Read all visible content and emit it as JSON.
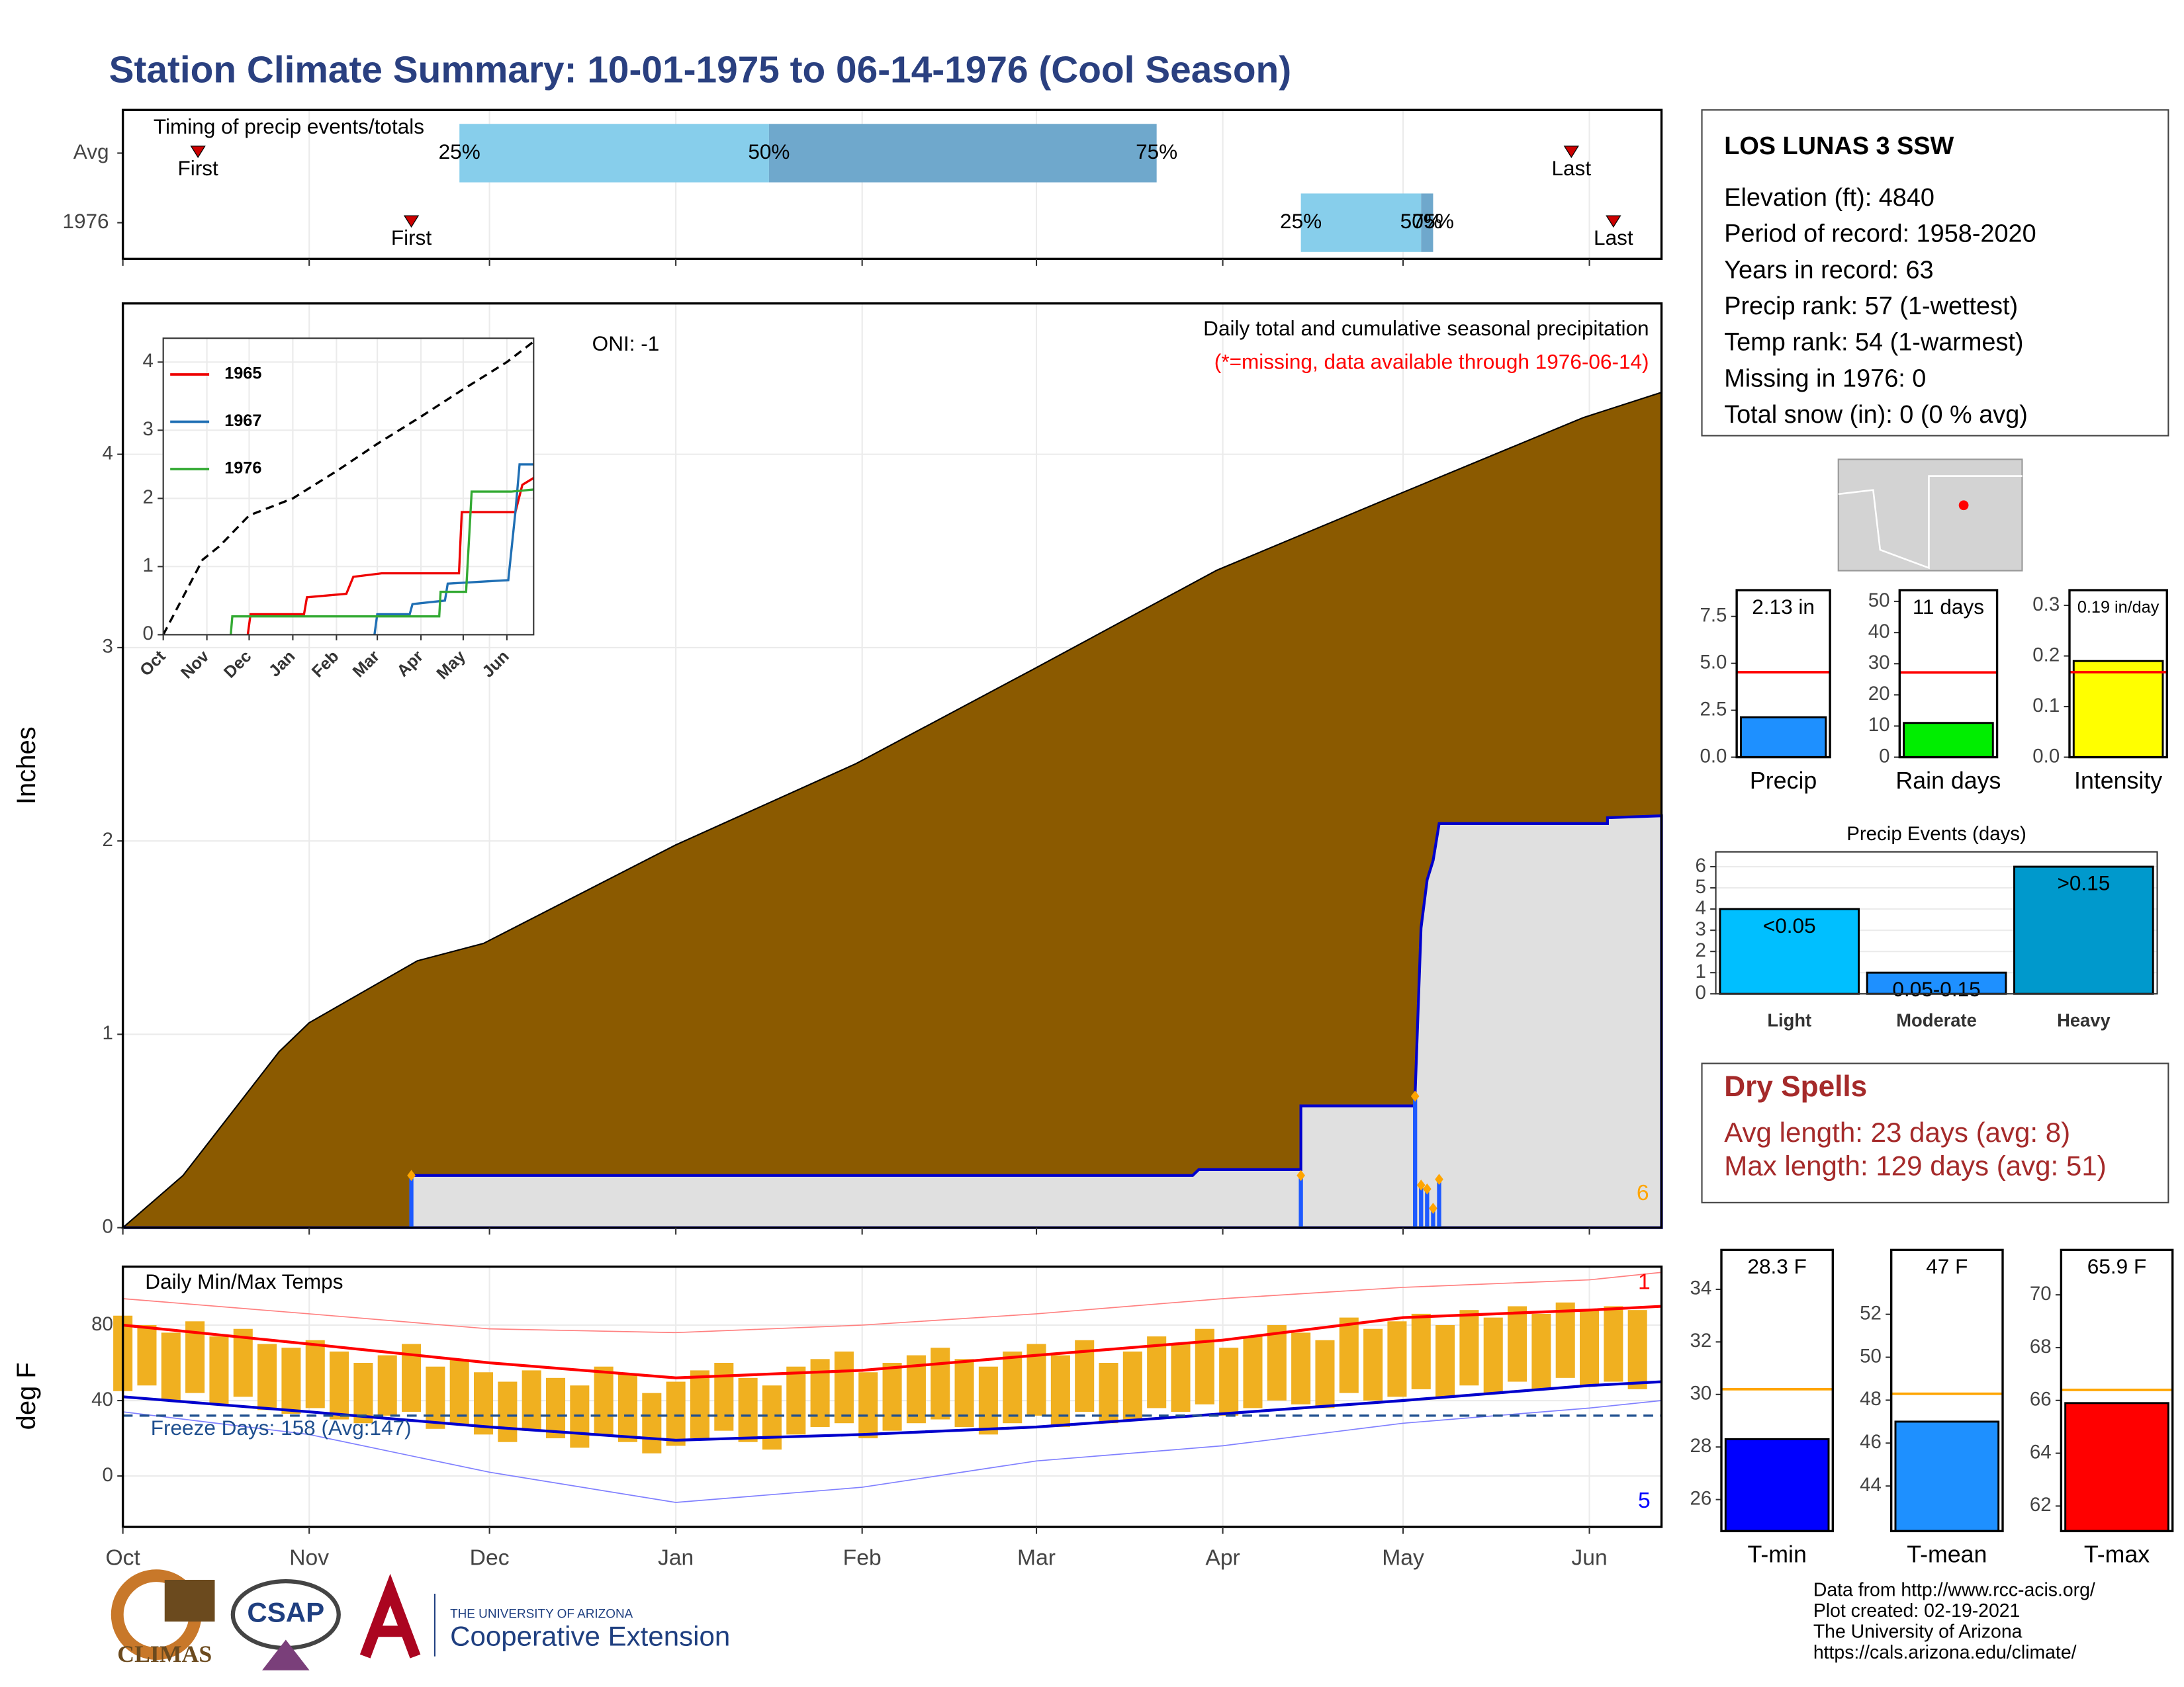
{
  "title": "Station Climate Summary: 10-01-1975 to 06-14-1976 (Cool Season)",
  "chart_data": [
    {
      "type": "timeline",
      "title": "Timing of precip events/totals",
      "xlim": [
        0,
        256
      ],
      "colors": [
        "#87ceeb",
        "#6fa8cc"
      ],
      "marker_color": "#cc0000",
      "first_label": "First",
      "last_label": "Last",
      "p25_label": "25%",
      "p50_label": "50%",
      "p75_label": "75%",
      "rows": [
        {
          "label": "Avg",
          "first": 12.5,
          "p25": 56,
          "p50": 107.5,
          "p75": 172,
          "last": 241
        },
        {
          "label": "1976",
          "first": 48,
          "p25": 196,
          "p50": 216,
          "p75": 218,
          "last": 248
        }
      ]
    },
    {
      "type": "step_area",
      "ylabel": "Inches",
      "xlim": [
        0,
        256
      ],
      "ylim": [
        0,
        4.78
      ],
      "yticks": [
        0,
        1,
        2,
        3,
        4
      ],
      "grid": true,
      "oni": "ONI: -1",
      "subtitle": "Daily total and cumulative seasonal precipitation",
      "note": "(*=missing, data available through 1976-06-14)",
      "corner_label": "6",
      "avg": {
        "color": "#8b5a00",
        "x": [
          0,
          10,
          26,
          31,
          49,
          60,
          92,
          122,
          151,
          182,
          212,
          243,
          256
        ],
        "values": [
          0,
          0.27,
          0.91,
          1.06,
          1.38,
          1.47,
          1.98,
          2.4,
          2.88,
          3.4,
          3.79,
          4.19,
          4.32
        ]
      },
      "observed": {
        "color": "#0000cc",
        "fill": "#e0e0e0",
        "x": [
          0,
          48,
          48,
          178,
          179,
          196,
          196,
          215,
          215,
          216,
          217,
          218,
          219,
          247,
          247,
          256
        ],
        "values": [
          0,
          0,
          0.27,
          0.27,
          0.3,
          0.3,
          0.63,
          0.63,
          0.68,
          1.55,
          1.8,
          1.9,
          2.09,
          2.09,
          2.12,
          2.13
        ]
      },
      "daily": {
        "color": "#1e5aff",
        "marker_color": "#ffa500",
        "x": [
          48,
          196,
          215,
          216,
          217,
          218,
          219
        ],
        "values": [
          0.27,
          0.27,
          0.68,
          0.22,
          0.2,
          0.1,
          0.25
        ]
      }
    },
    {
      "type": "line",
      "xlim": [
        0,
        263
      ],
      "ylim": [
        0,
        4.35
      ],
      "yticks": [
        0,
        1,
        2,
        3,
        4
      ],
      "xticks": [
        {
          "value": 0,
          "label": "Oct"
        },
        {
          "value": 31,
          "label": "Nov"
        },
        {
          "value": 61,
          "label": "Dec"
        },
        {
          "value": 92,
          "label": "Jan"
        },
        {
          "value": 123,
          "label": "Feb"
        },
        {
          "value": 152,
          "label": "Mar"
        },
        {
          "value": 183,
          "label": "Apr"
        },
        {
          "value": 213,
          "label": "May"
        },
        {
          "value": 244,
          "label": "Jun"
        }
      ],
      "average": {
        "color": "#000000",
        "x": [
          0,
          28,
          40,
          61,
          92,
          123,
          152,
          183,
          213,
          244,
          263
        ],
        "values": [
          0,
          1.1,
          1.3,
          1.75,
          2,
          2.4,
          2.8,
          3.2,
          3.6,
          4,
          4.3
        ]
      },
      "series": [
        {
          "name": "1965",
          "color": "#ee0000",
          "x": [
            60,
            62,
            100,
            102,
            130,
            135,
            155,
            210,
            212,
            250,
            255,
            263
          ],
          "values": [
            0,
            0.3,
            0.3,
            0.55,
            0.6,
            0.85,
            0.9,
            0.9,
            1.8,
            1.8,
            2.2,
            2.3
          ]
        },
        {
          "name": "1967",
          "color": "#1f6fb4",
          "x": [
            150,
            152,
            175,
            177,
            200,
            202,
            245,
            250,
            253,
            263
          ],
          "values": [
            0,
            0.3,
            0.3,
            0.45,
            0.5,
            0.75,
            0.8,
            1.8,
            2.5,
            2.5
          ]
        },
        {
          "name": "1976",
          "color": "#33aa33",
          "x": [
            48,
            49,
            196,
            197,
            215,
            219,
            247,
            263
          ],
          "values": [
            0,
            0.27,
            0.27,
            0.63,
            0.63,
            2.1,
            2.1,
            2.13
          ]
        }
      ]
    },
    {
      "type": "range",
      "title": "Daily Min/Max Temps",
      "ylabel": "deg F",
      "xlim": [
        0,
        256
      ],
      "ylim": [
        -27,
        111
      ],
      "yticks": [
        0,
        40,
        80
      ],
      "grid": true,
      "xticks": [
        {
          "value": 0,
          "label": "Oct"
        },
        {
          "value": 31,
          "label": "Nov"
        },
        {
          "value": 61,
          "label": "Dec"
        },
        {
          "value": 92,
          "label": "Jan"
        },
        {
          "value": 123,
          "label": "Feb"
        },
        {
          "value": 152,
          "label": "Mar"
        },
        {
          "value": 183,
          "label": "Apr"
        },
        {
          "value": 213,
          "label": "May"
        },
        {
          "value": 244,
          "label": "Jun"
        }
      ],
      "freeze": 32,
      "freeze_label": "Freeze Days: 158 (Avg:147)",
      "high_count": "1",
      "low_count": "5",
      "bar_color": "#f0b020",
      "x": [
        0,
        4,
        8,
        12,
        16,
        20,
        24,
        28,
        32,
        36,
        40,
        44,
        48,
        52,
        56,
        60,
        64,
        68,
        72,
        76,
        80,
        84,
        88,
        92,
        96,
        100,
        104,
        108,
        112,
        116,
        120,
        124,
        128,
        132,
        136,
        140,
        144,
        148,
        152,
        156,
        160,
        164,
        168,
        172,
        176,
        180,
        184,
        188,
        192,
        196,
        200,
        204,
        208,
        212,
        216,
        220,
        224,
        228,
        232,
        236,
        240,
        244,
        248,
        252
      ],
      "max": [
        85,
        80,
        76,
        82,
        74,
        78,
        70,
        68,
        72,
        66,
        60,
        64,
        70,
        58,
        62,
        55,
        50,
        56,
        52,
        48,
        58,
        54,
        44,
        50,
        56,
        60,
        52,
        48,
        58,
        62,
        66,
        55,
        60,
        64,
        68,
        62,
        58,
        66,
        70,
        64,
        72,
        60,
        66,
        74,
        70,
        78,
        68,
        74,
        80,
        76,
        72,
        84,
        78,
        82,
        86,
        80,
        88,
        84,
        90,
        86,
        92,
        88,
        90,
        88
      ],
      "min": [
        45,
        48,
        40,
        44,
        38,
        42,
        35,
        33,
        36,
        30,
        28,
        32,
        34,
        25,
        27,
        22,
        18,
        24,
        20,
        15,
        22,
        18,
        12,
        16,
        20,
        24,
        18,
        14,
        22,
        26,
        28,
        20,
        24,
        28,
        30,
        26,
        22,
        28,
        32,
        26,
        34,
        28,
        30,
        36,
        34,
        38,
        32,
        36,
        40,
        38,
        36,
        44,
        40,
        42,
        46,
        42,
        48,
        44,
        50,
        46,
        52,
        48,
        50,
        46
      ],
      "lines": [
        {
          "color": "#ff0000",
          "width": 2,
          "x": [
            0,
            31,
            61,
            92,
            123,
            152,
            183,
            213,
            244,
            256
          ],
          "values": [
            80,
            70,
            60,
            52,
            56,
            64,
            72,
            84,
            88,
            90
          ]
        },
        {
          "color": "#0000cc",
          "width": 2,
          "x": [
            0,
            31,
            61,
            92,
            123,
            152,
            183,
            213,
            244,
            256
          ],
          "values": [
            42,
            34,
            26,
            19,
            22,
            26,
            33,
            40,
            48,
            50
          ]
        },
        {
          "color": "#ff8080",
          "width": 0.8,
          "x": [
            0,
            31,
            61,
            92,
            123,
            152,
            183,
            213,
            244,
            256
          ],
          "values": [
            94,
            86,
            78,
            76,
            80,
            86,
            94,
            100,
            104,
            108
          ]
        },
        {
          "color": "#8080ff",
          "width": 0.8,
          "x": [
            0,
            31,
            61,
            92,
            123,
            152,
            183,
            213,
            244,
            256
          ],
          "values": [
            34,
            22,
            2,
            -14,
            -6,
            8,
            16,
            28,
            36,
            40
          ]
        }
      ]
    },
    {
      "type": "bar",
      "categories": [
        "Precip"
      ],
      "values": [
        2.13
      ],
      "value_labels": [
        "2.13 in"
      ],
      "avg": 4.53,
      "color": "#1e90ff",
      "avg_color": "#ff0000",
      "ylim": [
        0,
        8.9
      ],
      "yticks": [
        {
          "value": 0,
          "label": "0.0"
        },
        2.5,
        {
          "value": 5,
          "label": "5.0"
        },
        7.5
      ]
    },
    {
      "type": "bar",
      "categories": [
        "Rain days"
      ],
      "values": [
        11
      ],
      "value_labels": [
        "11 days"
      ],
      "avg": 27.2,
      "color": "#00ee00",
      "avg_color": "#ff0000",
      "ylim": [
        0,
        53.6
      ],
      "yticks": [
        0,
        10,
        20,
        30,
        40,
        50
      ]
    },
    {
      "type": "bar",
      "categories": [
        "Intensity"
      ],
      "values": [
        0.19
      ],
      "value_labels": [
        "0.19 in/day"
      ],
      "avg": 0.168,
      "color": "#ffff00",
      "avg_color": "#ff0000",
      "ylim": [
        0,
        0.33
      ],
      "yticks": [
        {
          "value": 0,
          "label": "0.0"
        },
        0.1,
        0.2,
        0.3
      ]
    },
    {
      "type": "events",
      "title": "Precip Events (days)",
      "categories": [
        "Light",
        "Moderate",
        "Heavy"
      ],
      "values": [
        4,
        1,
        6
      ],
      "bin_labels": [
        "<0.05",
        "0.05-0.15",
        ">0.15"
      ],
      "colors": [
        "#00bfff",
        "#1e90ff",
        "#0099cc"
      ],
      "ylim": [
        0,
        6.7
      ],
      "yticks": [
        0,
        1,
        2,
        3,
        4,
        5,
        6
      ],
      "grid": true
    },
    {
      "type": "bar",
      "categories": [
        "T-min"
      ],
      "values": [
        28.3
      ],
      "value_labels": [
        "28.3 F"
      ],
      "avg": 30.2,
      "color": "#0000ff",
      "avg_color": "#ffa500",
      "ylim": [
        24.8,
        35.5
      ],
      "yticks": [
        26,
        28,
        30,
        32,
        34
      ]
    },
    {
      "type": "bar",
      "categories": [
        "T-mean"
      ],
      "values": [
        47
      ],
      "value_labels": [
        "47 F"
      ],
      "avg": 48.3,
      "color": "#1e90ff",
      "avg_color": "#ffa500",
      "ylim": [
        41.9,
        55
      ],
      "yticks": [
        44,
        46,
        48,
        50,
        52
      ]
    },
    {
      "type": "bar",
      "categories": [
        "T-max"
      ],
      "values": [
        65.9
      ],
      "value_labels": [
        "65.9 F"
      ],
      "avg": 66.4,
      "color": "#ff0000",
      "avg_color": "#ffa500",
      "ylim": [
        61.05,
        71.7
      ],
      "yticks": [
        62,
        64,
        66,
        68,
        70
      ]
    }
  ],
  "station": {
    "name": "LOS LUNAS 3 SSW",
    "lines": [
      "Elevation (ft): 4840",
      "Period of record: 1958-2020",
      "Years in record: 63",
      "Precip rank: 57 (1-wettest)",
      "Temp rank: 54 (1-warmest)",
      "Missing in 1976: 0",
      "Total snow (in): 0 (0 % avg)"
    ]
  },
  "dry_spells": {
    "title": "Dry Spells",
    "lines": [
      "Avg length: 23 days (avg: 8)",
      "Max length: 129 days (avg: 51)"
    ]
  },
  "footer": [
    "Data from http://www.rcc-acis.org/",
    "Plot created: 02-19-2021",
    "The University of Arizona",
    "https://cals.arizona.edu/climate/"
  ],
  "logos": {
    "climas": "CLIMAS",
    "csap": "CSAP",
    "ua": "THE UNIVERSITY OF ARIZONA",
    "coop": "Cooperative Extension"
  }
}
